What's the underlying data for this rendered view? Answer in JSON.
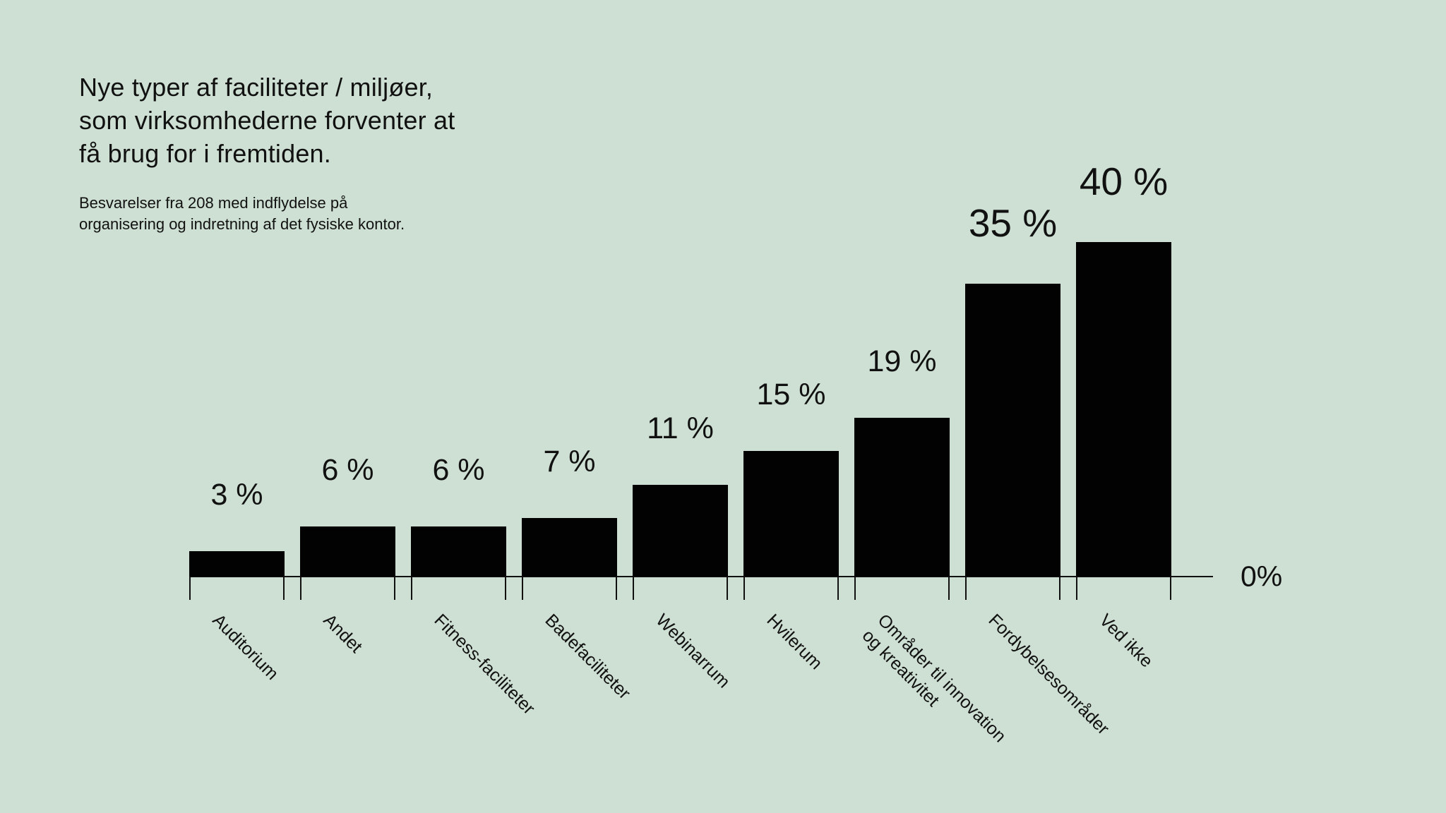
{
  "colors": {
    "background": "#cee0d3",
    "text": "#111111",
    "bar": "#020202",
    "axis": "#111111"
  },
  "title": {
    "lines": [
      "Nye typer af faciliteter / miljøer,",
      "som virksomhederne forventer at",
      "få brug for i fremtiden."
    ]
  },
  "subtitle": {
    "lines": [
      "Besvarelser fra 208 med indflydelse på",
      "organisering og indretning af det fysiske kontor."
    ]
  },
  "axis": {
    "zero_label": "0%"
  },
  "chart_data": {
    "type": "bar",
    "orientation": "vertical",
    "title": "Nye typer af faciliteter / miljøer, som virksomhederne forventer at få brug for i fremtiden.",
    "subtitle": "Besvarelser fra 208 med indflydelse på organisering og indretning af det fysiske kontor.",
    "categories": [
      "Auditorium",
      "Andet",
      "Fitness-faciliteter",
      "Badefaciliteter",
      "Webinarrum",
      "Hvilerum",
      "Områder til innovation og kreativitet",
      "Fordybelsesområder",
      "Ved ikke"
    ],
    "category_display_lines": [
      [
        "Auditorium"
      ],
      [
        "Andet"
      ],
      [
        "Fitness-faciliteter"
      ],
      [
        "Badefaciliteter"
      ],
      [
        "Webinarrum"
      ],
      [
        "Hvilerum"
      ],
      [
        "Områder til innovation",
        "og kreativitet"
      ],
      [
        "Fordybelsesområder"
      ],
      [
        "Ved ikke"
      ]
    ],
    "values": [
      3,
      6,
      6,
      7,
      11,
      15,
      19,
      35,
      40
    ],
    "value_labels": [
      "3 %",
      "6 %",
      "6 %",
      "7 %",
      "11 %",
      "15 %",
      "19 %",
      "35 %",
      "40 %"
    ],
    "unit": "%",
    "baseline_label": "0%",
    "ylim": [
      0,
      40
    ],
    "grid": false,
    "legend": false,
    "bar_color": "#020202",
    "category_label_rotation_deg": 45
  }
}
